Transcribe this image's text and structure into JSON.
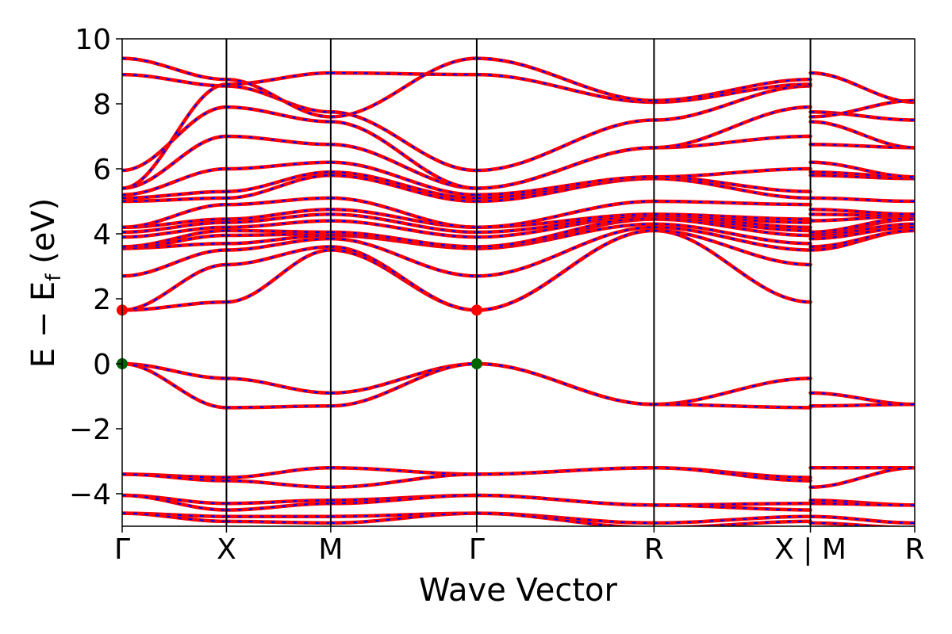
{
  "chart_data": {
    "type": "line",
    "xlabel": "Wave Vector",
    "ylabel_main": "E − E",
    "ylabel_sub": "f",
    "ylabel_unit": " (eV)",
    "ylim": [
      -5,
      10
    ],
    "yticks": [
      10,
      8,
      6,
      4,
      2,
      0,
      -2,
      -4
    ],
    "ytick_labels": [
      "10",
      "8",
      "6",
      "4",
      "2",
      "0",
      "−2",
      "−4"
    ],
    "xlim": [
      0,
      7.6
    ],
    "kpoints": [
      {
        "pos": 0.0,
        "label": "Γ"
      },
      {
        "pos": 1.0,
        "label": "X"
      },
      {
        "pos": 2.0,
        "label": "M"
      },
      {
        "pos": 3.4,
        "label": "Γ"
      },
      {
        "pos": 5.1,
        "label": "R"
      },
      {
        "pos": 6.6,
        "label": "X | M"
      },
      {
        "pos": 7.6,
        "label": "R"
      }
    ],
    "vertical_lines": [
      1.0,
      2.0,
      3.4,
      5.1,
      6.6
    ],
    "grid": false,
    "colors": {
      "bands_up": "#ff0000",
      "bands_down": "#0000ff",
      "cbm": "#ff0000",
      "vbm": "#006400"
    },
    "segments": [
      {
        "x0": 0.0,
        "x1": 1.0,
        "bands": [
          [
            0,
            -0.45
          ],
          [
            0,
            -1.35
          ],
          [
            -3.4,
            -3.5
          ],
          [
            -3.4,
            -3.6
          ],
          [
            -4.05,
            -4.3
          ],
          [
            -4.05,
            -4.5
          ],
          [
            -4.6,
            -4.7
          ],
          [
            -4.6,
            -4.85
          ],
          [
            1.65,
            1.9
          ],
          [
            1.65,
            3.05
          ],
          [
            2.7,
            3.5
          ],
          [
            3.55,
            3.7
          ],
          [
            3.55,
            3.95
          ],
          [
            3.6,
            4.1
          ],
          [
            3.9,
            4.2
          ],
          [
            4.05,
            4.35
          ],
          [
            4.2,
            4.45
          ],
          [
            4.2,
            4.9
          ],
          [
            5.0,
            5.1
          ],
          [
            5.1,
            5.3
          ],
          [
            5.2,
            6.0
          ],
          [
            5.4,
            7.0
          ],
          [
            5.4,
            8.6
          ],
          [
            5.95,
            7.9
          ],
          [
            8.9,
            8.55
          ],
          [
            9.4,
            8.75
          ]
        ]
      },
      {
        "x0": 1.0,
        "x1": 2.0,
        "bands": [
          [
            -0.45,
            -0.9
          ],
          [
            -1.35,
            -1.3
          ],
          [
            -3.5,
            -3.2
          ],
          [
            -3.6,
            -3.8
          ],
          [
            -4.3,
            -4.2
          ],
          [
            -4.5,
            -4.3
          ],
          [
            -4.7,
            -4.7
          ],
          [
            -4.85,
            -4.9
          ],
          [
            1.9,
            3.5
          ],
          [
            3.05,
            3.6
          ],
          [
            3.5,
            3.85
          ],
          [
            3.7,
            3.95
          ],
          [
            3.95,
            4.0
          ],
          [
            4.1,
            4.05
          ],
          [
            4.2,
            4.4
          ],
          [
            4.35,
            4.6
          ],
          [
            4.45,
            4.75
          ],
          [
            4.9,
            5.1
          ],
          [
            5.1,
            5.8
          ],
          [
            5.3,
            5.9
          ],
          [
            6.0,
            6.2
          ],
          [
            7.0,
            6.75
          ],
          [
            7.9,
            7.45
          ],
          [
            8.55,
            7.75
          ],
          [
            8.6,
            8.95
          ],
          [
            8.75,
            7.6
          ]
        ]
      },
      {
        "x0": 2.0,
        "x1": 3.4,
        "bands": [
          [
            -0.9,
            0.0
          ],
          [
            -1.3,
            0.0
          ],
          [
            -3.2,
            -3.4
          ],
          [
            -3.8,
            -3.4
          ],
          [
            -4.2,
            -4.05
          ],
          [
            -4.3,
            -4.05
          ],
          [
            -4.7,
            -4.6
          ],
          [
            -4.9,
            -4.6
          ],
          [
            3.5,
            1.65
          ],
          [
            3.6,
            1.65
          ],
          [
            3.85,
            2.7
          ],
          [
            3.95,
            3.55
          ],
          [
            4.0,
            3.55
          ],
          [
            4.05,
            3.6
          ],
          [
            4.4,
            3.9
          ],
          [
            4.6,
            4.05
          ],
          [
            4.75,
            4.2
          ],
          [
            5.1,
            4.2
          ],
          [
            5.8,
            5.0
          ],
          [
            5.9,
            5.1
          ],
          [
            6.2,
            5.2
          ],
          [
            6.75,
            5.4
          ],
          [
            7.45,
            5.4
          ],
          [
            7.75,
            5.95
          ],
          [
            8.95,
            8.9
          ],
          [
            7.6,
            9.4
          ]
        ]
      },
      {
        "x0": 3.4,
        "x1": 5.1,
        "bands": [
          [
            0.0,
            -1.25
          ],
          [
            0.0,
            -1.25
          ],
          [
            -3.4,
            -3.2
          ],
          [
            -3.4,
            -3.2
          ],
          [
            -4.05,
            -4.35
          ],
          [
            -4.05,
            -4.35
          ],
          [
            -4.6,
            -4.9
          ],
          [
            -4.6,
            -5.05
          ],
          [
            1.65,
            4.1
          ],
          [
            1.65,
            4.1
          ],
          [
            2.7,
            4.2
          ],
          [
            3.55,
            4.3
          ],
          [
            3.55,
            4.45
          ],
          [
            3.6,
            4.5
          ],
          [
            3.9,
            4.55
          ],
          [
            4.05,
            4.55
          ],
          [
            4.2,
            4.6
          ],
          [
            4.2,
            5.0
          ],
          [
            5.0,
            5.7
          ],
          [
            5.1,
            5.75
          ],
          [
            5.2,
            5.75
          ],
          [
            5.4,
            6.65
          ],
          [
            5.4,
            6.65
          ],
          [
            5.95,
            7.5
          ],
          [
            8.9,
            8.05
          ],
          [
            9.4,
            8.1
          ]
        ]
      },
      {
        "x0": 5.1,
        "x1": 6.6,
        "bands": [
          [
            -1.25,
            -0.45
          ],
          [
            -1.25,
            -1.35
          ],
          [
            -3.2,
            -3.5
          ],
          [
            -3.2,
            -3.6
          ],
          [
            -4.35,
            -4.3
          ],
          [
            -4.35,
            -4.5
          ],
          [
            -4.9,
            -4.7
          ],
          [
            -5.05,
            -4.85
          ],
          [
            4.1,
            1.9
          ],
          [
            4.1,
            3.05
          ],
          [
            4.2,
            3.5
          ],
          [
            4.3,
            3.7
          ],
          [
            4.45,
            3.95
          ],
          [
            4.5,
            4.1
          ],
          [
            4.55,
            4.2
          ],
          [
            4.55,
            4.35
          ],
          [
            4.6,
            4.45
          ],
          [
            5.0,
            4.9
          ],
          [
            5.7,
            5.1
          ],
          [
            5.75,
            5.3
          ],
          [
            5.75,
            6.0
          ],
          [
            6.65,
            7.0
          ],
          [
            6.65,
            7.9
          ],
          [
            7.5,
            8.55
          ],
          [
            8.05,
            8.6
          ],
          [
            8.1,
            8.75
          ]
        ]
      },
      {
        "x0": 6.6,
        "x1": 7.6,
        "bands": [
          [
            -0.9,
            -1.25
          ],
          [
            -1.3,
            -1.25
          ],
          [
            -3.2,
            -3.2
          ],
          [
            -3.8,
            -3.2
          ],
          [
            -4.2,
            -4.35
          ],
          [
            -4.3,
            -4.35
          ],
          [
            -4.7,
            -4.9
          ],
          [
            -4.9,
            -5.05
          ],
          [
            3.5,
            4.1
          ],
          [
            3.6,
            4.1
          ],
          [
            3.85,
            4.2
          ],
          [
            3.95,
            4.3
          ],
          [
            4.0,
            4.45
          ],
          [
            4.05,
            4.5
          ],
          [
            4.4,
            4.55
          ],
          [
            4.6,
            4.55
          ],
          [
            4.75,
            4.6
          ],
          [
            5.1,
            5.0
          ],
          [
            5.8,
            5.7
          ],
          [
            5.9,
            5.75
          ],
          [
            6.2,
            5.75
          ],
          [
            6.75,
            6.65
          ],
          [
            7.45,
            6.65
          ],
          [
            7.75,
            7.5
          ],
          [
            8.95,
            8.05
          ],
          [
            7.6,
            8.1
          ]
        ]
      }
    ],
    "markers": [
      {
        "x": 0.0,
        "y": 1.65,
        "kind": "cbm"
      },
      {
        "x": 3.4,
        "y": 1.65,
        "kind": "cbm"
      },
      {
        "x": 0.0,
        "y": 0.0,
        "kind": "vbm"
      },
      {
        "x": 3.4,
        "y": 0.0,
        "kind": "vbm"
      }
    ]
  }
}
